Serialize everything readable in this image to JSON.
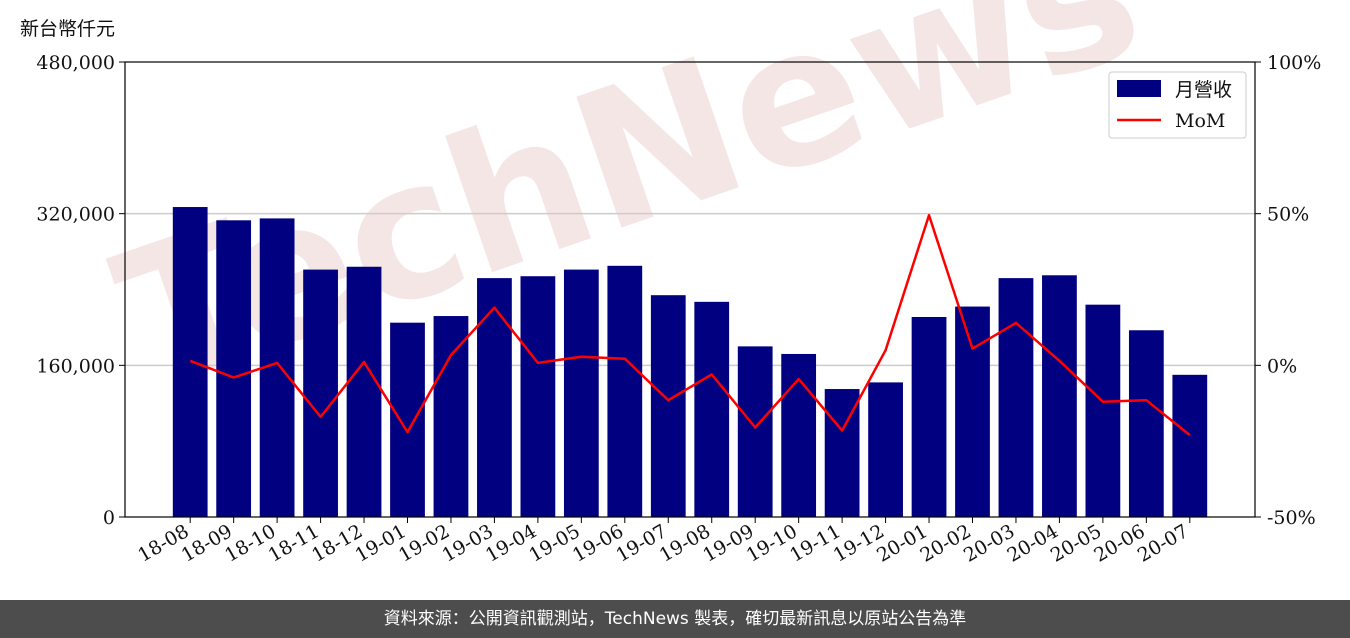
{
  "unit_label": "新台幣仟元",
  "footer": "資料來源：公開資訊觀測站，TechNews 製表，確切最新訊息以原站公告為準",
  "watermark": "TechNews",
  "colors": {
    "bar": "#000080",
    "line": "#ff0000",
    "grid": "#cccccc",
    "footer_bg": "#4d4d4d"
  },
  "chart_data": {
    "type": "bar",
    "categories": [
      "18-08",
      "18-09",
      "18-10",
      "18-11",
      "18-12",
      "19-01",
      "19-02",
      "19-03",
      "19-04",
      "19-05",
      "19-06",
      "19-07",
      "19-08",
      "19-09",
      "19-10",
      "19-11",
      "19-12",
      "20-01",
      "20-02",
      "20-03",
      "20-04",
      "20-05",
      "20-06",
      "20-07"
    ],
    "series": [
      {
        "name": "月營收",
        "type": "bar",
        "axis": "left",
        "values": [
          327000,
          313000,
          315000,
          261000,
          264000,
          205000,
          212000,
          252000,
          254000,
          261000,
          265000,
          234000,
          227000,
          180000,
          172000,
          135000,
          142000,
          211000,
          222000,
          252000,
          255000,
          224000,
          197000,
          150000
        ]
      },
      {
        "name": "MoM",
        "type": "line",
        "axis": "right",
        "values": [
          1.5,
          -4,
          0.8,
          -17,
          1.1,
          -22,
          3.4,
          19,
          0.8,
          2.8,
          2.2,
          -11.5,
          -3,
          -20.5,
          -4.5,
          -21.5,
          5,
          49.5,
          5.5,
          14,
          1.5,
          -12,
          -11.5,
          -23
        ]
      }
    ],
    "y_left": {
      "range": [
        0,
        480000
      ],
      "ticks": [
        0,
        160000,
        320000,
        480000
      ],
      "tick_labels": [
        "0",
        "160,000",
        "320,000",
        "480,000"
      ]
    },
    "y_right": {
      "range": [
        -50,
        100
      ],
      "ticks": [
        -50,
        0,
        50,
        100
      ],
      "tick_labels": [
        "-50%",
        "0%",
        "50%",
        "100%"
      ]
    },
    "grid": "horizontal",
    "legend_position": "top-right"
  }
}
